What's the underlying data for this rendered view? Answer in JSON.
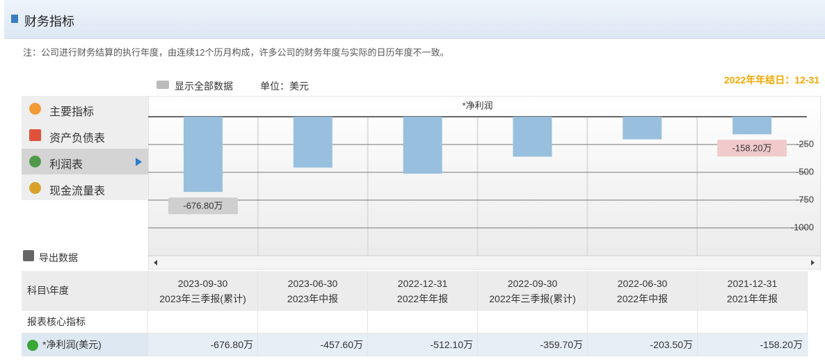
{
  "header": {
    "title": "财务指标"
  },
  "note": "注：公司进行财务结算的执行年度，由连续12个历月构成，许多公司的财务年度与实际的日历年度不一致。",
  "toolbar": {
    "show_all": "显示全部数据",
    "unit": "单位：美元",
    "year_end": "2022年年结日：12-31"
  },
  "menu": [
    "主要指标",
    "资产负债表",
    "利润表",
    "现金流量表"
  ],
  "export": "导出数据",
  "chart_data": {
    "type": "bar",
    "title": "*净利润",
    "values": [
      -676.8,
      -457.6,
      -512.1,
      -359.7,
      -203.5,
      -158.2
    ],
    "value_labels": [
      "-676.80万",
      null,
      null,
      null,
      null,
      "-158.20万"
    ],
    "color": "#98c0de",
    "ylim": [
      -1250,
      0
    ],
    "yticks": [
      -250,
      -500,
      -750,
      -1000
    ],
    "grid": true
  },
  "table": {
    "corner": "科目\\年度",
    "columns": [
      {
        "date": "2023-09-30",
        "report": "2023年三季报(累计)"
      },
      {
        "date": "2023-06-30",
        "report": "2023年中报"
      },
      {
        "date": "2022-12-31",
        "report": "2022年年报"
      },
      {
        "date": "2022-09-30",
        "report": "2022年三季报(累计)"
      },
      {
        "date": "2022-06-30",
        "report": "2022年中报"
      },
      {
        "date": "2021-12-31",
        "report": "2021年年报"
      }
    ],
    "rows": [
      {
        "label": "报表核心指标"
      },
      {
        "label": "*净利润(美元)",
        "cells": [
          "-676.80万",
          "-457.60万",
          "-512.10万",
          "-359.70万",
          "-203.50万",
          "-158.20万"
        ]
      }
    ]
  }
}
